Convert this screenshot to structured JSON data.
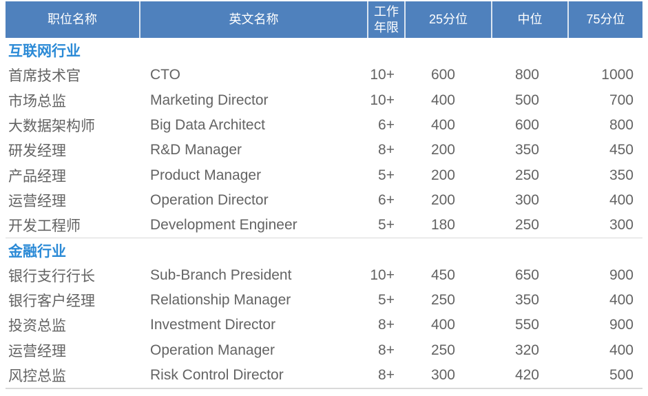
{
  "theme": {
    "header_bg": "#4f81bd",
    "header_text": "#ffffff",
    "header_separator": "#dce6f1",
    "section_title_color": "#2b8ad6",
    "body_text_color": "#636363",
    "divider_color": "#d9d9d9"
  },
  "table": {
    "columns": [
      "职位名称",
      "英文名称",
      "工作年限",
      "25分位",
      "中位",
      "75分位"
    ],
    "sections": [
      {
        "title": "互联网行业",
        "rows": [
          {
            "position_cn": "首席技术官",
            "position_en": "CTO",
            "years": "10+",
            "p25": "600",
            "median": "800",
            "p75": "1000"
          },
          {
            "position_cn": "市场总监",
            "position_en": "Marketing Director",
            "years": "10+",
            "p25": "400",
            "median": "500",
            "p75": "700"
          },
          {
            "position_cn": "大数据架构师",
            "position_en": "Big Data Architect",
            "years": "6+",
            "p25": "400",
            "median": "600",
            "p75": "800"
          },
          {
            "position_cn": "研发经理",
            "position_en": "R&D Manager",
            "years": "8+",
            "p25": "200",
            "median": "350",
            "p75": "450"
          },
          {
            "position_cn": "产品经理",
            "position_en": "Product Manager",
            "years": "5+",
            "p25": "200",
            "median": "250",
            "p75": "350"
          },
          {
            "position_cn": "运营经理",
            "position_en": "Operation Director",
            "years": "6+",
            "p25": "200",
            "median": "300",
            "p75": "400"
          },
          {
            "position_cn": "开发工程师",
            "position_en": "Development Engineer",
            "years": "5+",
            "p25": "180",
            "median": "250",
            "p75": "300"
          }
        ]
      },
      {
        "title": "金融行业",
        "rows": [
          {
            "position_cn": "银行支行行长",
            "position_en": "Sub-Branch President",
            "years": "10+",
            "p25": "450",
            "median": "650",
            "p75": "900"
          },
          {
            "position_cn": "银行客户经理",
            "position_en": "Relationship Manager",
            "years": "5+",
            "p25": "250",
            "median": "350",
            "p75": "400"
          },
          {
            "position_cn": "投资总监",
            "position_en": "Investment Director",
            "years": "8+",
            "p25": "400",
            "median": "550",
            "p75": "900"
          },
          {
            "position_cn": "运营经理",
            "position_en": "Operation Manager",
            "years": "8+",
            "p25": "250",
            "median": "320",
            "p75": "400"
          },
          {
            "position_cn": "风控总监",
            "position_en": "Risk Control Director",
            "years": "8+",
            "p25": "300",
            "median": "420",
            "p75": "500"
          }
        ]
      }
    ]
  }
}
